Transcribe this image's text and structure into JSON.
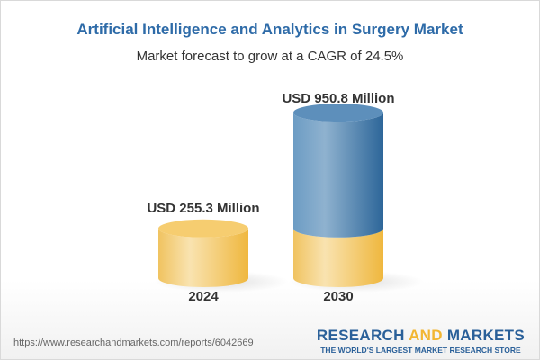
{
  "title": "Artificial Intelligence and Analytics in Surgery Market",
  "subtitle": "Market forecast to grow at a CAGR of 24.5%",
  "chart_data": {
    "type": "bar",
    "style": "3d-cylinder",
    "categories": [
      "2024",
      "2030"
    ],
    "values": [
      255.3,
      950.8
    ],
    "data_labels": [
      "USD 255.3 Million",
      "USD 950.8 Million"
    ],
    "unit": "USD Million",
    "cagr": "24.5%",
    "colors": {
      "base": "#f2c35a",
      "growth": "#4a7fb0"
    }
  },
  "footer": {
    "url": "https://www.researchandmarkets.com/reports/6042669",
    "logo_part1": "RESEARCH ",
    "logo_part2": "AND",
    "logo_part3": " MARKETS",
    "tagline": "THE WORLD'S LARGEST MARKET RESEARCH STORE"
  }
}
